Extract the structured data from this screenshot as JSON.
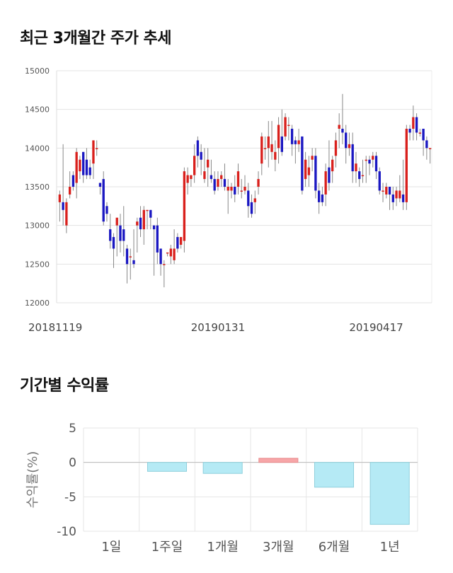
{
  "sections": {
    "price_title": "최근 3개월간 주가 추세",
    "returns_title": "기간별 수익률"
  },
  "colors": {
    "up": "#d9201c",
    "down": "#1a17c2",
    "bar_positive": "#f7a6a8",
    "bar_negative": "#b5eaf5",
    "grid": "#e3e3e3"
  },
  "chart_data": [
    {
      "type": "candlestick",
      "title": "최근 3개월간 주가 추세",
      "ylim": [
        12000,
        15000
      ],
      "yticks": [
        12000,
        12500,
        13000,
        13500,
        14000,
        14500,
        15000
      ],
      "xtick_labels": [
        {
          "label": "20181119",
          "index": 0
        },
        {
          "label": "20190131",
          "index": 47
        },
        {
          "label": "20190417",
          "index": 94
        }
      ],
      "grid": true,
      "candles": [
        [
          13300,
          13400,
          13050,
          13450
        ],
        [
          13300,
          13200,
          13000,
          14050
        ],
        [
          13000,
          13300,
          12900,
          13350
        ],
        [
          13400,
          13500,
          13350,
          13700
        ],
        [
          13650,
          13500,
          13450,
          13700
        ],
        [
          13550,
          13950,
          13350,
          14000
        ],
        [
          13700,
          13850,
          13600,
          13900
        ],
        [
          13950,
          13650,
          13550,
          13950
        ],
        [
          13850,
          13650,
          13600,
          14000
        ],
        [
          13750,
          13650,
          13600,
          13850
        ],
        [
          13800,
          14100,
          13600,
          14100
        ],
        [
          14000,
          14000,
          13900,
          14100
        ],
        [
          13550,
          13500,
          13400,
          13550
        ],
        [
          13600,
          13050,
          13000,
          13700
        ],
        [
          13250,
          13150,
          13050,
          13300
        ],
        [
          12950,
          12800,
          12700,
          13150
        ],
        [
          12850,
          12700,
          12450,
          12900
        ],
        [
          13000,
          13100,
          12600,
          13100
        ],
        [
          13000,
          12800,
          12650,
          13150
        ],
        [
          12950,
          12800,
          12600,
          13250
        ],
        [
          12700,
          12500,
          12250,
          12750
        ],
        [
          12600,
          12600,
          12300,
          12700
        ],
        [
          12550,
          12500,
          12450,
          12950
        ],
        [
          13000,
          13050,
          12650,
          13100
        ],
        [
          13100,
          12950,
          12850,
          13250
        ],
        [
          12950,
          13200,
          12750,
          13250
        ],
        [
          13200,
          13200,
          12950,
          13200
        ],
        [
          13200,
          13100,
          12950,
          13200
        ],
        [
          13000,
          12950,
          12350,
          13000
        ],
        [
          13000,
          12650,
          12500,
          13100
        ],
        [
          12700,
          12500,
          12350,
          12700
        ],
        [
          12500,
          12500,
          12200,
          12550
        ],
        [
          12650,
          12650,
          12600,
          12650
        ],
        [
          12600,
          12700,
          12500,
          12750
        ],
        [
          12550,
          12700,
          12500,
          12950
        ],
        [
          12850,
          12700,
          12650,
          12900
        ],
        [
          12750,
          12850,
          12700,
          12850
        ],
        [
          12800,
          13700,
          12650,
          13750
        ],
        [
          13550,
          13650,
          13400,
          13750
        ],
        [
          13600,
          13650,
          13500,
          13650
        ],
        [
          13650,
          13900,
          13550,
          14050
        ],
        [
          14100,
          13900,
          13750,
          14150
        ],
        [
          13950,
          13850,
          13650,
          14050
        ],
        [
          13600,
          13700,
          13550,
          14000
        ],
        [
          13750,
          13850,
          13500,
          14000
        ],
        [
          13650,
          13600,
          13550,
          13850
        ],
        [
          13600,
          13450,
          13400,
          13700
        ],
        [
          13500,
          13600,
          13450,
          13700
        ],
        [
          13600,
          13650,
          13500,
          13700
        ],
        [
          13600,
          13500,
          13450,
          13800
        ],
        [
          13450,
          13500,
          13150,
          13600
        ],
        [
          13450,
          13500,
          13350,
          13550
        ],
        [
          13500,
          13400,
          13300,
          13650
        ],
        [
          13500,
          13700,
          13400,
          13800
        ],
        [
          13450,
          13450,
          13350,
          13600
        ],
        [
          13450,
          13500,
          13400,
          13650
        ],
        [
          13450,
          13250,
          13100,
          13550
        ],
        [
          13300,
          13150,
          13100,
          13400
        ],
        [
          13300,
          13350,
          13150,
          13450
        ],
        [
          13500,
          13600,
          13400,
          13700
        ],
        [
          13800,
          14150,
          13650,
          14200
        ],
        [
          14000,
          14000,
          13850,
          14150
        ],
        [
          14000,
          14150,
          13750,
          14350
        ],
        [
          13950,
          14050,
          13850,
          14350
        ],
        [
          13850,
          13950,
          13700,
          14100
        ],
        [
          14000,
          14300,
          13800,
          14400
        ],
        [
          14150,
          13950,
          13900,
          14500
        ],
        [
          14150,
          14400,
          14100,
          14450
        ],
        [
          14300,
          14300,
          14100,
          14400
        ],
        [
          14250,
          14050,
          13900,
          14300
        ],
        [
          14100,
          14050,
          13800,
          14150
        ],
        [
          14050,
          14100,
          13950,
          14250
        ],
        [
          14150,
          13450,
          13400,
          14150
        ],
        [
          13600,
          13850,
          13500,
          13950
        ],
        [
          13650,
          13750,
          13500,
          13900
        ],
        [
          13850,
          13900,
          13700,
          14000
        ],
        [
          13900,
          13450,
          13350,
          14000
        ],
        [
          13450,
          13300,
          13150,
          13550
        ],
        [
          13400,
          13300,
          13250,
          13500
        ],
        [
          13400,
          13700,
          13250,
          13800
        ],
        [
          13750,
          13550,
          13450,
          14100
        ],
        [
          13700,
          13850,
          13550,
          13900
        ],
        [
          13900,
          14100,
          13750,
          14200
        ],
        [
          14250,
          14300,
          14000,
          14450
        ],
        [
          14250,
          14200,
          14050,
          14700
        ],
        [
          14200,
          14000,
          13800,
          14300
        ],
        [
          14000,
          14050,
          13900,
          14200
        ],
        [
          14050,
          13700,
          13550,
          14200
        ],
        [
          13700,
          13800,
          13550,
          13950
        ],
        [
          13700,
          13600,
          13500,
          13750
        ],
        [
          13650,
          13650,
          13550,
          13850
        ],
        [
          13850,
          13850,
          13550,
          13900
        ],
        [
          13850,
          13800,
          13650,
          13900
        ],
        [
          13850,
          13900,
          13750,
          13950
        ],
        [
          13900,
          13700,
          13600,
          13950
        ],
        [
          13700,
          13450,
          13400,
          13750
        ],
        [
          13450,
          13450,
          13300,
          13550
        ],
        [
          13400,
          13500,
          13350,
          13550
        ],
        [
          13500,
          13400,
          13200,
          13500
        ],
        [
          13400,
          13300,
          13200,
          13500
        ],
        [
          13350,
          13450,
          13250,
          13500
        ],
        [
          13350,
          13450,
          13300,
          13650
        ],
        [
          13400,
          13300,
          13200,
          13850
        ],
        [
          13300,
          14250,
          13200,
          14300
        ],
        [
          14250,
          14200,
          14100,
          14300
        ],
        [
          14250,
          14400,
          14100,
          14550
        ],
        [
          14400,
          14200,
          14100,
          14450
        ],
        [
          14200,
          14200,
          14150,
          14250
        ],
        [
          14250,
          14100,
          13900,
          14250
        ],
        [
          14100,
          14000,
          13850,
          14150
        ],
        [
          14000,
          14000,
          13800,
          14000
        ]
      ]
    },
    {
      "type": "bar",
      "title": "기간별 수익률",
      "ylabel": "수익률(%)",
      "categories": [
        "1일",
        "1주일",
        "1개월",
        "3개월",
        "6개월",
        "1년"
      ],
      "values": [
        0.0,
        -1.3,
        -1.6,
        0.6,
        -3.6,
        -9.0
      ],
      "ylim": [
        -10,
        5
      ],
      "yticks": [
        5,
        0,
        -5,
        -10
      ],
      "grid": true
    }
  ]
}
